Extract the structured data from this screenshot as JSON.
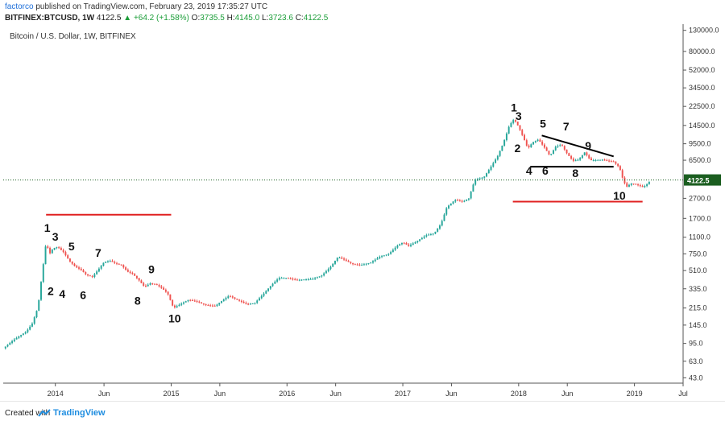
{
  "header": {
    "author": "factorco",
    "published": "published on TradingView.com, February 23, 2019 17:35:27 UTC",
    "symbol": "BITFINEX:BTCUSD, 1W",
    "price": "4122.5",
    "change": "▲ +64.2 (+1.58%)",
    "o_label": "O:",
    "o_value": "3735.5",
    "h_label": "H:",
    "h_value": "4145.0",
    "l_label": "L:",
    "l_value": "3723.6",
    "c_label": "C:",
    "c_value": "4122.5"
  },
  "subtitle": "Bitcoin / U.S. Dollar, 1W, BITFINEX",
  "footer": {
    "created": "Created with",
    "brand": "TradingView"
  },
  "colors": {
    "up": "#26a69a",
    "down": "#ef5350",
    "red_line": "#e02020",
    "black_line": "#000000",
    "price_tag": "#1b5e20"
  },
  "chart_data": {
    "type": "candlestick",
    "y_scale": "log",
    "ylim": [
      38,
      150000
    ],
    "y_ticks": [
      130000,
      80000,
      52000,
      34500,
      22500,
      14500,
      9500,
      6500,
      4122.5,
      2700,
      1700,
      1100,
      750,
      510,
      335,
      215,
      145,
      95,
      63,
      43
    ],
    "y_tick_labels": [
      "130000.0",
      "80000.0",
      "52000.0",
      "34500.0",
      "22500.0",
      "14500.0",
      "9500.0",
      "6500.0",
      "4122.5",
      "2700.0",
      "1700.0",
      "1100.0",
      "750.0",
      "510.0",
      "335.0",
      "215.0",
      "145.0",
      "95.0",
      "63.0",
      "43.0"
    ],
    "x_range": [
      2013.55,
      2019.42
    ],
    "x_ticks": [
      {
        "x": 2014.0,
        "label": "2014"
      },
      {
        "x": 2014.42,
        "label": "Jun"
      },
      {
        "x": 2015.0,
        "label": "2015"
      },
      {
        "x": 2015.42,
        "label": "Jun"
      },
      {
        "x": 2016.0,
        "label": "2016"
      },
      {
        "x": 2016.42,
        "label": "Jun"
      },
      {
        "x": 2017.0,
        "label": "2017"
      },
      {
        "x": 2017.42,
        "label": "Jun"
      },
      {
        "x": 2018.0,
        "label": "2018"
      },
      {
        "x": 2018.42,
        "label": "Jun"
      },
      {
        "x": 2019.0,
        "label": "2019"
      },
      {
        "x": 2019.42,
        "label": "Jul"
      }
    ],
    "last_price": 4122.5,
    "price_series": [
      [
        2013.55,
        85
      ],
      [
        2013.65,
        105
      ],
      [
        2013.75,
        125
      ],
      [
        2013.8,
        150
      ],
      [
        2013.85,
        220
      ],
      [
        2013.88,
        420
      ],
      [
        2013.92,
        980
      ],
      [
        2013.95,
        750
      ],
      [
        2013.98,
        850
      ],
      [
        2014.02,
        880
      ],
      [
        2014.07,
        780
      ],
      [
        2014.12,
        640
      ],
      [
        2014.17,
        560
      ],
      [
        2014.22,
        520
      ],
      [
        2014.27,
        460
      ],
      [
        2014.32,
        440
      ],
      [
        2014.37,
        520
      ],
      [
        2014.42,
        620
      ],
      [
        2014.47,
        640
      ],
      [
        2014.52,
        600
      ],
      [
        2014.57,
        580
      ],
      [
        2014.62,
        500
      ],
      [
        2014.67,
        470
      ],
      [
        2014.72,
        410
      ],
      [
        2014.77,
        350
      ],
      [
        2014.82,
        380
      ],
      [
        2014.87,
        370
      ],
      [
        2014.92,
        340
      ],
      [
        2014.97,
        300
      ],
      [
        2015.02,
        215
      ],
      [
        2015.08,
        235
      ],
      [
        2015.15,
        260
      ],
      [
        2015.22,
        250
      ],
      [
        2015.3,
        230
      ],
      [
        2015.38,
        225
      ],
      [
        2015.45,
        260
      ],
      [
        2015.5,
        285
      ],
      [
        2015.57,
        260
      ],
      [
        2015.65,
        235
      ],
      [
        2015.72,
        240
      ],
      [
        2015.8,
        300
      ],
      [
        2015.87,
        370
      ],
      [
        2015.93,
        430
      ],
      [
        2016.0,
        430
      ],
      [
        2016.08,
        410
      ],
      [
        2016.15,
        415
      ],
      [
        2016.22,
        420
      ],
      [
        2016.3,
        455
      ],
      [
        2016.38,
        560
      ],
      [
        2016.44,
        700
      ],
      [
        2016.5,
        650
      ],
      [
        2016.57,
        590
      ],
      [
        2016.64,
        580
      ],
      [
        2016.72,
        610
      ],
      [
        2016.8,
        700
      ],
      [
        2016.88,
        750
      ],
      [
        2016.95,
        900
      ],
      [
        2017.0,
        980
      ],
      [
        2017.05,
        900
      ],
      [
        2017.12,
        1000
      ],
      [
        2017.2,
        1150
      ],
      [
        2017.27,
        1200
      ],
      [
        2017.33,
        1500
      ],
      [
        2017.38,
        2200
      ],
      [
        2017.45,
        2600
      ],
      [
        2017.52,
        2500
      ],
      [
        2017.57,
        2700
      ],
      [
        2017.62,
        4100
      ],
      [
        2017.7,
        4400
      ],
      [
        2017.77,
        5800
      ],
      [
        2017.82,
        7200
      ],
      [
        2017.87,
        9800
      ],
      [
        2017.92,
        14500
      ],
      [
        2017.96,
        16800
      ],
      [
        2018.0,
        14000
      ],
      [
        2018.04,
        11000
      ],
      [
        2018.08,
        8500
      ],
      [
        2018.12,
        9800
      ],
      [
        2018.17,
        10500
      ],
      [
        2018.22,
        8800
      ],
      [
        2018.27,
        7200
      ],
      [
        2018.32,
        8900
      ],
      [
        2018.37,
        9300
      ],
      [
        2018.42,
        7500
      ],
      [
        2018.47,
        6400
      ],
      [
        2018.52,
        6600
      ],
      [
        2018.57,
        7800
      ],
      [
        2018.62,
        6500
      ],
      [
        2018.67,
        6500
      ],
      [
        2018.72,
        6600
      ],
      [
        2018.77,
        6400
      ],
      [
        2018.82,
        6300
      ],
      [
        2018.87,
        5500
      ],
      [
        2018.9,
        4200
      ],
      [
        2018.93,
        3500
      ],
      [
        2018.97,
        3800
      ],
      [
        2019.02,
        3700
      ],
      [
        2019.07,
        3500
      ],
      [
        2019.1,
        3650
      ],
      [
        2019.14,
        4122.5
      ]
    ],
    "annotations": {
      "labels_2014": [
        {
          "text": "1",
          "x": 2013.93,
          "y": 1250
        },
        {
          "text": "3",
          "x": 2014.0,
          "y": 1020
        },
        {
          "text": "5",
          "x": 2014.14,
          "y": 810
        },
        {
          "text": "7",
          "x": 2014.37,
          "y": 700
        },
        {
          "text": "9",
          "x": 2014.83,
          "y": 480
        },
        {
          "text": "2",
          "x": 2013.96,
          "y": 290
        },
        {
          "text": "4",
          "x": 2014.06,
          "y": 272
        },
        {
          "text": "6",
          "x": 2014.24,
          "y": 265
        },
        {
          "text": "8",
          "x": 2014.71,
          "y": 232
        },
        {
          "text": "10",
          "x": 2015.03,
          "y": 154
        }
      ],
      "labels_2018": [
        {
          "text": "1",
          "x": 2017.96,
          "y": 20000
        },
        {
          "text": "3",
          "x": 2018.0,
          "y": 16500
        },
        {
          "text": "5",
          "x": 2018.21,
          "y": 13800
        },
        {
          "text": "7",
          "x": 2018.41,
          "y": 12900
        },
        {
          "text": "9",
          "x": 2018.6,
          "y": 8300
        },
        {
          "text": "2",
          "x": 2017.99,
          "y": 7800
        },
        {
          "text": "4",
          "x": 2018.09,
          "y": 4650
        },
        {
          "text": "6",
          "x": 2018.23,
          "y": 4650
        },
        {
          "text": "8",
          "x": 2018.49,
          "y": 4400
        },
        {
          "text": "10",
          "x": 2018.87,
          "y": 2630
        }
      ],
      "lines": [
        {
          "color": "red",
          "x1": 2013.92,
          "y1": 1850,
          "x2": 2015.0,
          "y2": 1850
        },
        {
          "color": "red",
          "x1": 2017.95,
          "y1": 2500,
          "x2": 2019.07,
          "y2": 2500
        },
        {
          "color": "black",
          "x1": 2018.1,
          "y1": 5600,
          "x2": 2018.82,
          "y2": 5600
        },
        {
          "color": "black",
          "x1": 2018.2,
          "y1": 11500,
          "x2": 2018.82,
          "y2": 7100
        }
      ]
    }
  }
}
